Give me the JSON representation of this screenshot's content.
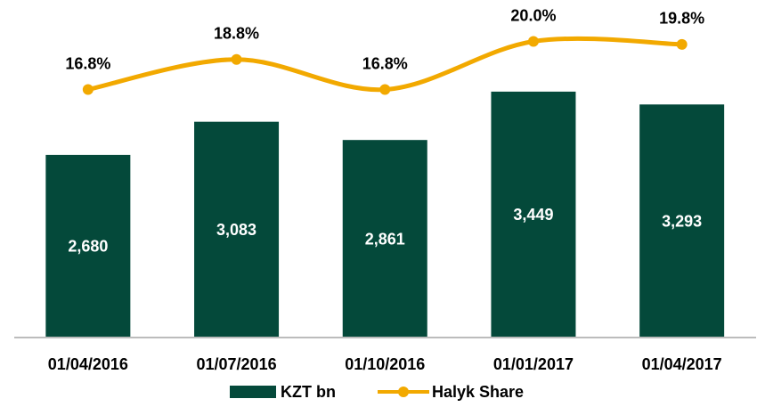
{
  "chart_data": {
    "type": "bar",
    "categories": [
      "01/04/2016",
      "01/07/2016",
      "01/10/2016",
      "01/01/2017",
      "01/04/2017"
    ],
    "ylim": [
      470,
      4000
    ],
    "y2lim": [
      0,
      20
    ],
    "legend": "bottom",
    "series": [
      {
        "name": "KZT bn",
        "type": "bar",
        "color": "#04493a",
        "values": [
          2680,
          3083,
          2861,
          3449,
          3293
        ],
        "value_labels": [
          "2,680",
          "3,083",
          "2,861",
          "3,449",
          "3,293"
        ]
      },
      {
        "name": "Halyk Share",
        "type": "line",
        "axis": "y2",
        "color": "#f2a900",
        "values": [
          16.8,
          18.8,
          16.8,
          20.0,
          19.8
        ],
        "value_labels": [
          "16.8%",
          "18.8%",
          "16.8%",
          "20.0%",
          "19.8%"
        ]
      }
    ]
  }
}
